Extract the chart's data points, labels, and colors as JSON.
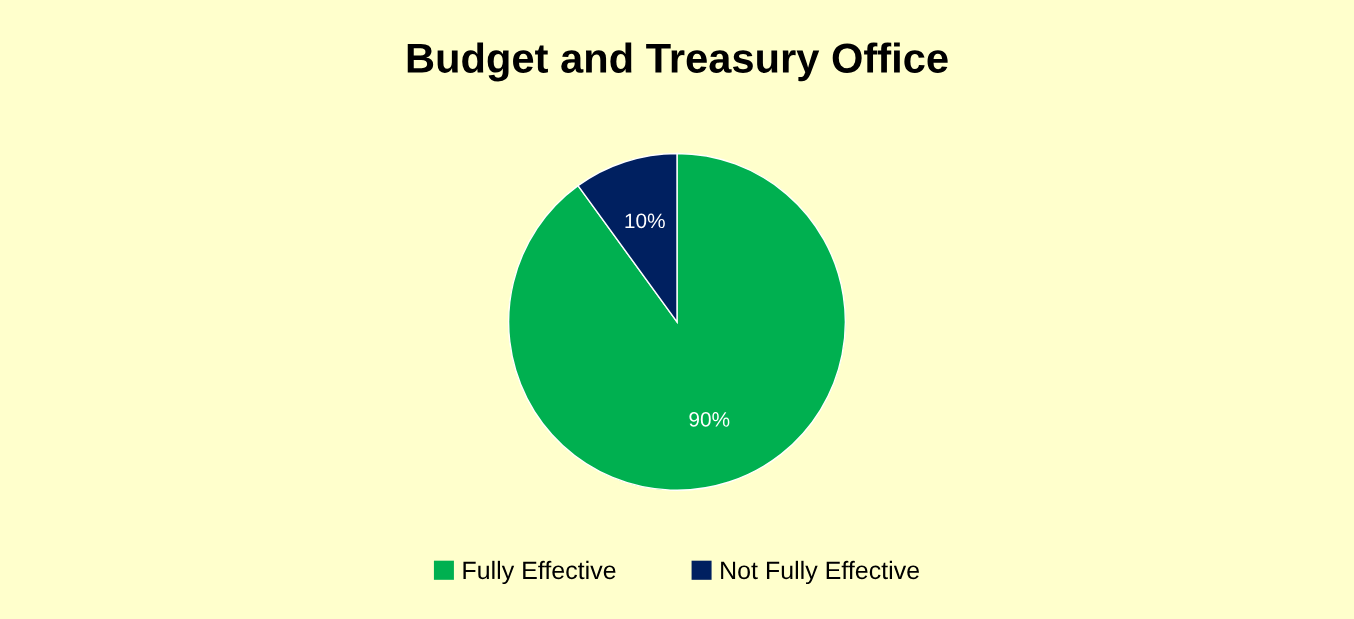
{
  "chart_data": {
    "type": "pie",
    "title": "Budget and Treasury Office",
    "categories": [
      "Fully Effective",
      "Not Fully Effective"
    ],
    "values": [
      90,
      10
    ],
    "value_labels": [
      "90%",
      "10%"
    ],
    "colors": [
      "#00b050",
      "#002060"
    ],
    "legend": "bottom"
  }
}
